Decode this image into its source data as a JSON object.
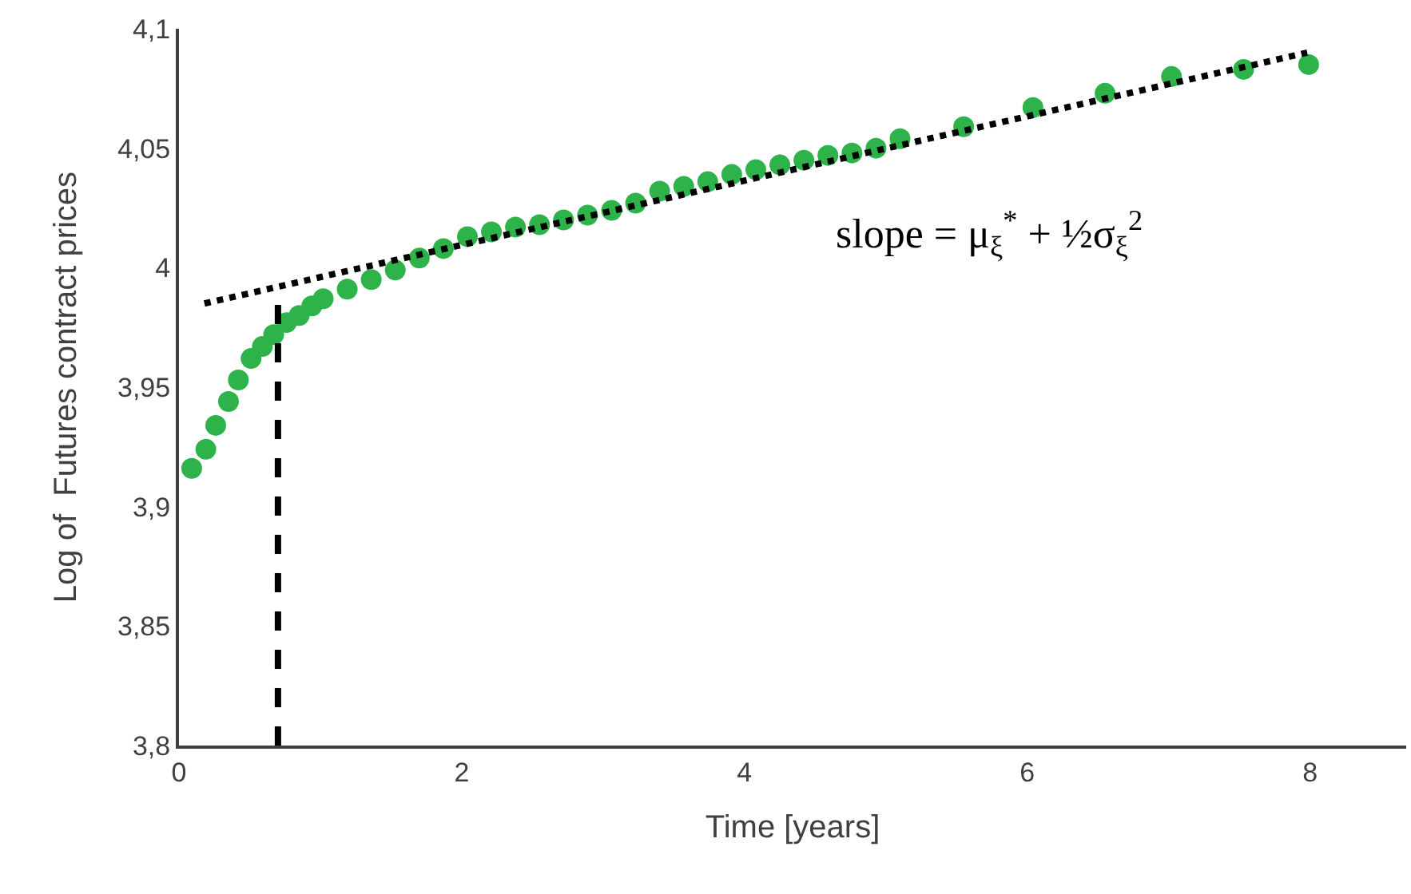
{
  "chart_data": {
    "type": "scatter",
    "xlabel": "Time [years]",
    "ylabel": "Log of  Futures contract prices",
    "xlim": [
      0,
      8.68
    ],
    "ylim": [
      3.8,
      4.1
    ],
    "xticks": [
      0,
      2,
      4,
      6,
      8
    ],
    "yticks": [
      {
        "value": 3.8,
        "label": "3,8"
      },
      {
        "value": 3.85,
        "label": "3,85"
      },
      {
        "value": 3.9,
        "label": "3,9"
      },
      {
        "value": 3.95,
        "label": "3,95"
      },
      {
        "value": 4,
        "label": "4"
      },
      {
        "value": 4.05,
        "label": "4,05"
      },
      {
        "value": 4.1,
        "label": "4,1"
      }
    ],
    "grid": false,
    "marker": "circle",
    "annotations": [
      "slope = μ$_{ξ}$$^{*}$ + ½σ$_{ξ}$$^{2}$"
    ],
    "series": [
      {
        "color": "#2db34a",
        "x": [
          0.09,
          0.19,
          0.26,
          0.35,
          0.42,
          0.51,
          0.59,
          0.67,
          0.76,
          0.85,
          0.94,
          1.02,
          1.19,
          1.36,
          1.53,
          1.7,
          1.87,
          2.04,
          2.21,
          2.38,
          2.55,
          2.72,
          2.89,
          3.06,
          3.23,
          3.4,
          3.57,
          3.74,
          3.91,
          4.08,
          4.25,
          4.42,
          4.59,
          4.76,
          4.93,
          5.1,
          5.55,
          6.04,
          6.55,
          7.02,
          7.53,
          7.99
        ],
        "values": [
          3.916,
          3.924,
          3.934,
          3.944,
          3.953,
          3.962,
          3.967,
          3.972,
          3.977,
          3.98,
          3.984,
          3.987,
          3.991,
          3.995,
          3.999,
          4.004,
          4.008,
          4.013,
          4.015,
          4.017,
          4.018,
          4.02,
          4.022,
          4.024,
          4.027,
          4.032,
          4.034,
          4.036,
          4.039,
          4.041,
          4.043,
          4.045,
          4.047,
          4.048,
          4.05,
          4.054,
          4.059,
          4.067,
          4.073,
          4.08,
          4.083,
          4.085
        ]
      },
      {
        "type": "line",
        "color": "#000000",
        "line_style": "dotted",
        "marker": "none",
        "x": [
          0.18,
          7.98
        ],
        "values": [
          3.985,
          4.09
        ]
      },
      {
        "type": "line",
        "color": "#000000",
        "line_style": "dashed",
        "marker": "none",
        "x": [
          0.7,
          0.7
        ],
        "values": [
          3.8,
          3.985
        ]
      }
    ]
  }
}
